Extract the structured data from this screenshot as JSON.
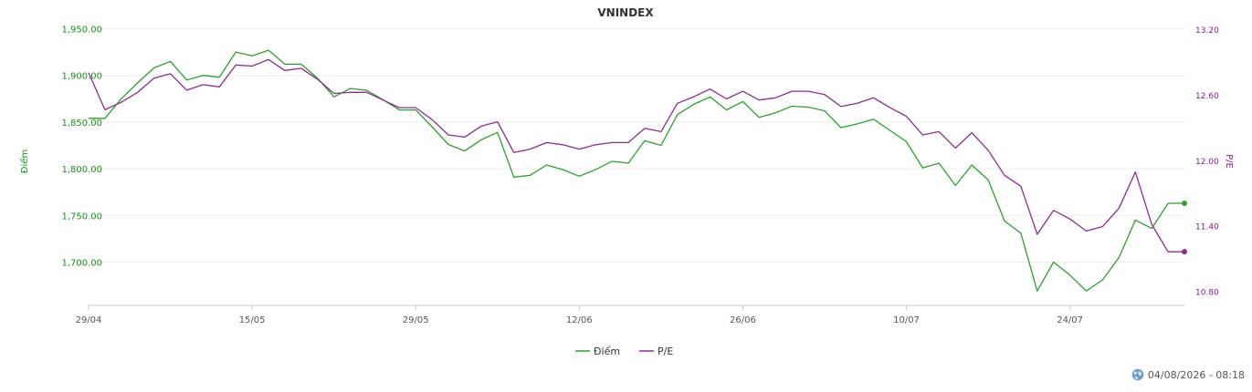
{
  "chart_data": {
    "type": "line",
    "title": "VNINDEX",
    "ylabel_left": "Điểm",
    "ylabel_right": "P/E",
    "ylim_left": [
      1650,
      1950
    ],
    "ylim_right": [
      10.8,
      13.2
    ],
    "yticks_left": [
      "1,950.00",
      "1,900.00",
      "1,850.00",
      "1,800.00",
      "1,750.00",
      "1,700.00"
    ],
    "yticks_left_values": [
      1950,
      1900,
      1850,
      1800,
      1750,
      1700
    ],
    "yticks_right": [
      "13.20",
      "12.60",
      "12.00",
      "11.40",
      "10.80"
    ],
    "yticks_right_values": [
      13.2,
      12.6,
      12.0,
      11.4,
      10.8
    ],
    "x_ticks": [
      {
        "label": "29/04",
        "index": 0
      },
      {
        "label": "15/05",
        "index": 10
      },
      {
        "label": "29/05",
        "index": 20
      },
      {
        "label": "12/06",
        "index": 30
      },
      {
        "label": "26/06",
        "index": 40
      },
      {
        "label": "10/07",
        "index": 50
      },
      {
        "label": "24/07",
        "index": 60
      }
    ],
    "legend": "bottom-center",
    "grid": true,
    "series": [
      {
        "name": "Điểm",
        "color": "#2ca02c",
        "axis": "left",
        "values": [
          1854,
          1854,
          1875,
          1892,
          1908,
          1915,
          1895,
          1900,
          1898,
          1925,
          1921,
          1927,
          1912,
          1912,
          1897,
          1877,
          1886,
          1884,
          1874,
          1863,
          1863,
          1845,
          1826,
          1819,
          1831,
          1839,
          1791,
          1793,
          1804,
          1799,
          1792,
          1799,
          1808,
          1806,
          1830,
          1825,
          1858,
          1869,
          1877,
          1863,
          1872,
          1855,
          1860,
          1867,
          1866,
          1862,
          1844,
          1848,
          1853,
          1841,
          1829,
          1801,
          1806,
          1782,
          1804,
          1788,
          1744,
          1731,
          1669,
          1700,
          1686,
          1669,
          1681,
          1705,
          1745,
          1736,
          1763,
          1763
        ]
      },
      {
        "name": "P/E",
        "color": "#8e2c8e",
        "axis": "right",
        "values": [
          12.81,
          12.47,
          12.54,
          12.63,
          12.76,
          12.8,
          12.65,
          12.7,
          12.68,
          12.88,
          12.87,
          12.93,
          12.83,
          12.85,
          12.75,
          12.62,
          12.63,
          12.63,
          12.56,
          12.49,
          12.49,
          12.38,
          12.24,
          12.22,
          12.32,
          12.36,
          12.08,
          12.11,
          12.17,
          12.15,
          12.11,
          12.15,
          12.17,
          12.17,
          12.3,
          12.27,
          12.53,
          12.59,
          12.66,
          12.57,
          12.64,
          12.56,
          12.58,
          12.64,
          12.64,
          12.61,
          12.5,
          12.53,
          12.58,
          12.49,
          12.41,
          12.24,
          12.27,
          12.12,
          12.26,
          12.1,
          11.87,
          11.77,
          11.33,
          11.55,
          11.47,
          11.36,
          11.4,
          11.57,
          11.9,
          11.42,
          11.17,
          11.17
        ]
      }
    ]
  },
  "footer": {
    "timestamp": "04/08/2026 - 08:18",
    "icon": "globe-icon"
  }
}
